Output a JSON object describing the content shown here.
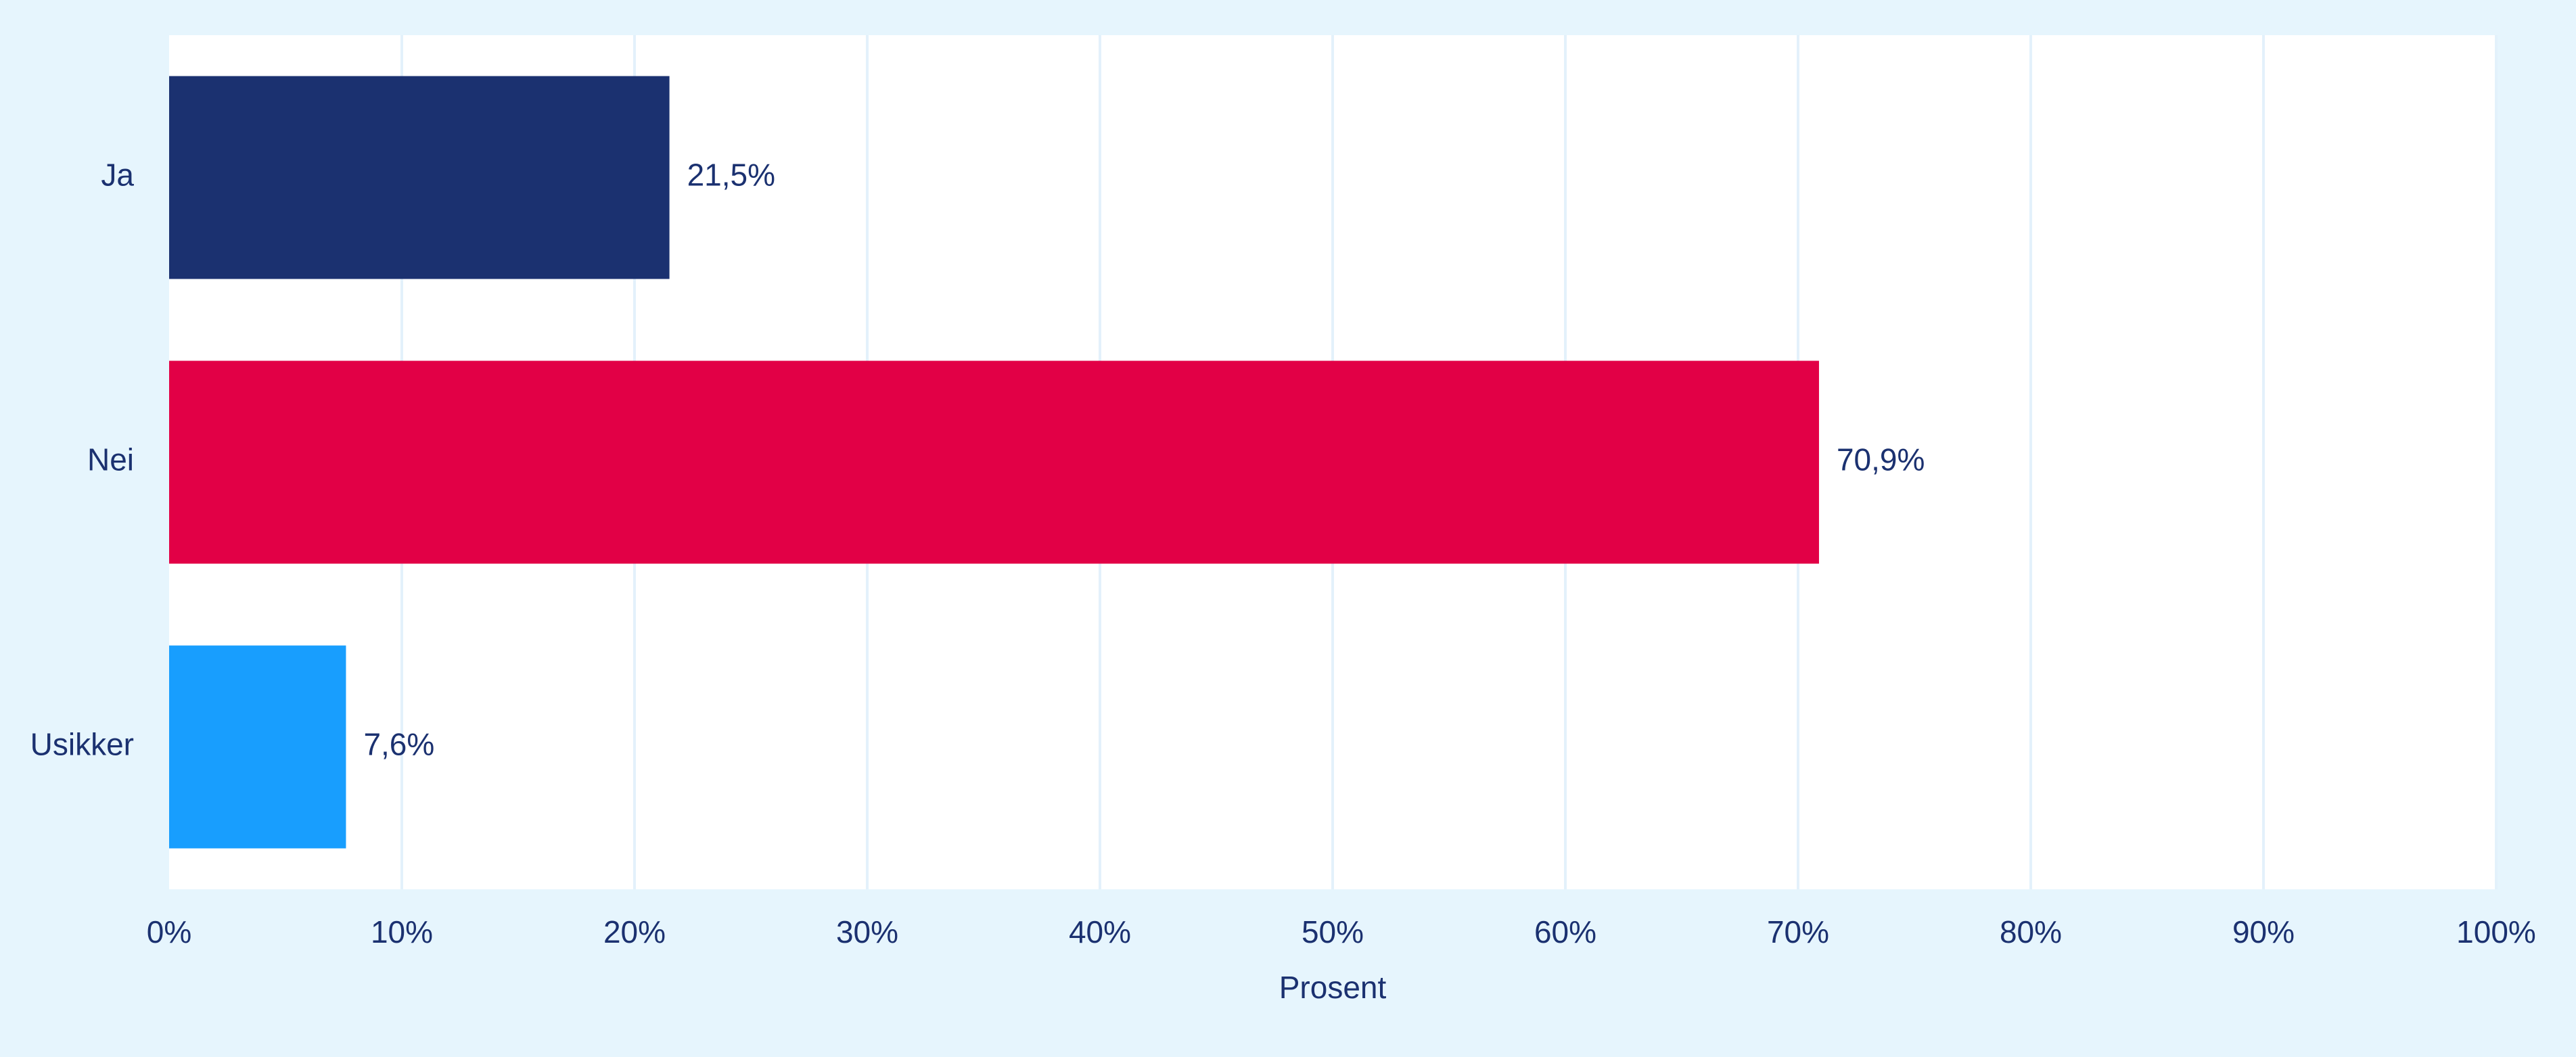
{
  "chart_data": {
    "type": "bar",
    "orientation": "horizontal",
    "categories": [
      "Ja",
      "Nei",
      "Usikker"
    ],
    "values": [
      21.5,
      70.9,
      7.6
    ],
    "value_labels": [
      "21,5%",
      "70,9%",
      "7,6%"
    ],
    "colors": [
      "#1b3170",
      "#e20046",
      "#189efe"
    ],
    "xlabel": "Prosent",
    "ylabel": "",
    "title": "",
    "xlim": [
      0,
      100
    ],
    "x_ticks": [
      0,
      10,
      20,
      30,
      40,
      50,
      60,
      70,
      80,
      90,
      100
    ],
    "x_tick_labels": [
      "0%",
      "10%",
      "20%",
      "30%",
      "40%",
      "50%",
      "60%",
      "70%",
      "80%",
      "90%",
      "100%"
    ],
    "grid": "vertical",
    "legend": "none"
  },
  "style": {
    "background_color": "#e6f5fd",
    "plot_background_color": "#ffffff",
    "gridline_color": "#e3f1fb",
    "text_color": "#1b3170"
  }
}
